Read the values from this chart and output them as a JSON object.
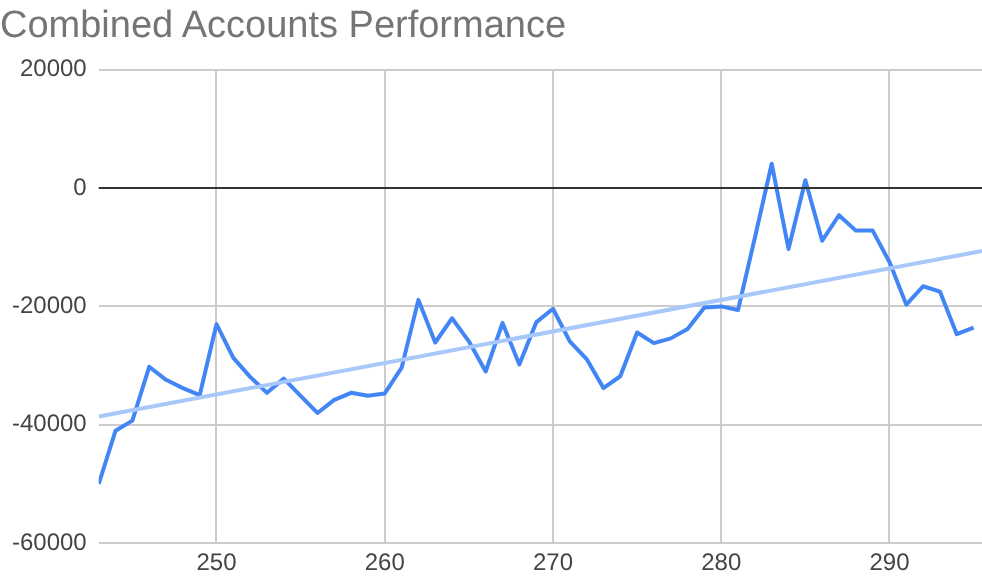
{
  "chart_data": {
    "type": "line",
    "title": "Combined Accounts Performance",
    "x": [
      243,
      244,
      245,
      246,
      247,
      248,
      249,
      250,
      251,
      252,
      253,
      254,
      255,
      256,
      257,
      258,
      259,
      260,
      261,
      262,
      263,
      264,
      265,
      266,
      267,
      268,
      269,
      270,
      271,
      272,
      273,
      274,
      275,
      276,
      277,
      278,
      279,
      280,
      281,
      282,
      283,
      284,
      285,
      286,
      287,
      288,
      289,
      290,
      291,
      292,
      293,
      294,
      295
    ],
    "series": [
      {
        "color": "#4285f4",
        "values": [
          -50000,
          -41000,
          -39300,
          -30200,
          -32400,
          -33800,
          -35000,
          -23000,
          -28700,
          -31900,
          -34600,
          -32200,
          -35100,
          -38000,
          -35800,
          -34600,
          -35100,
          -34700,
          -30400,
          -18900,
          -26100,
          -22000,
          -25900,
          -31000,
          -22800,
          -29800,
          -22700,
          -20400,
          -25900,
          -28900,
          -33800,
          -31800,
          -24400,
          -26200,
          -25400,
          -23800,
          -20200,
          -20000,
          -20600,
          -8400,
          4100,
          -10300,
          1300,
          -8900,
          -4600,
          -7200,
          -7200,
          -12500,
          -19700,
          -16600,
          -17500,
          -24700,
          -23600
        ]
      },
      {
        "type": "line",
        "color": "#a8c7fa",
        "x": [
          243,
          295.5
        ],
        "values": [
          -38600,
          -10650
        ]
      }
    ],
    "xlim": [
      243,
      295.5
    ],
    "xticks": [
      250,
      260,
      270,
      280,
      290
    ],
    "ylim": [
      -60000,
      20000
    ],
    "yticks": [
      -60000,
      -40000,
      -20000,
      0,
      20000
    ],
    "grid": true,
    "legend": false,
    "marker": "none",
    "line_style": "solid",
    "ref_lines": [
      {
        "axis": "y",
        "value": 0,
        "color": "#333333"
      }
    ]
  }
}
